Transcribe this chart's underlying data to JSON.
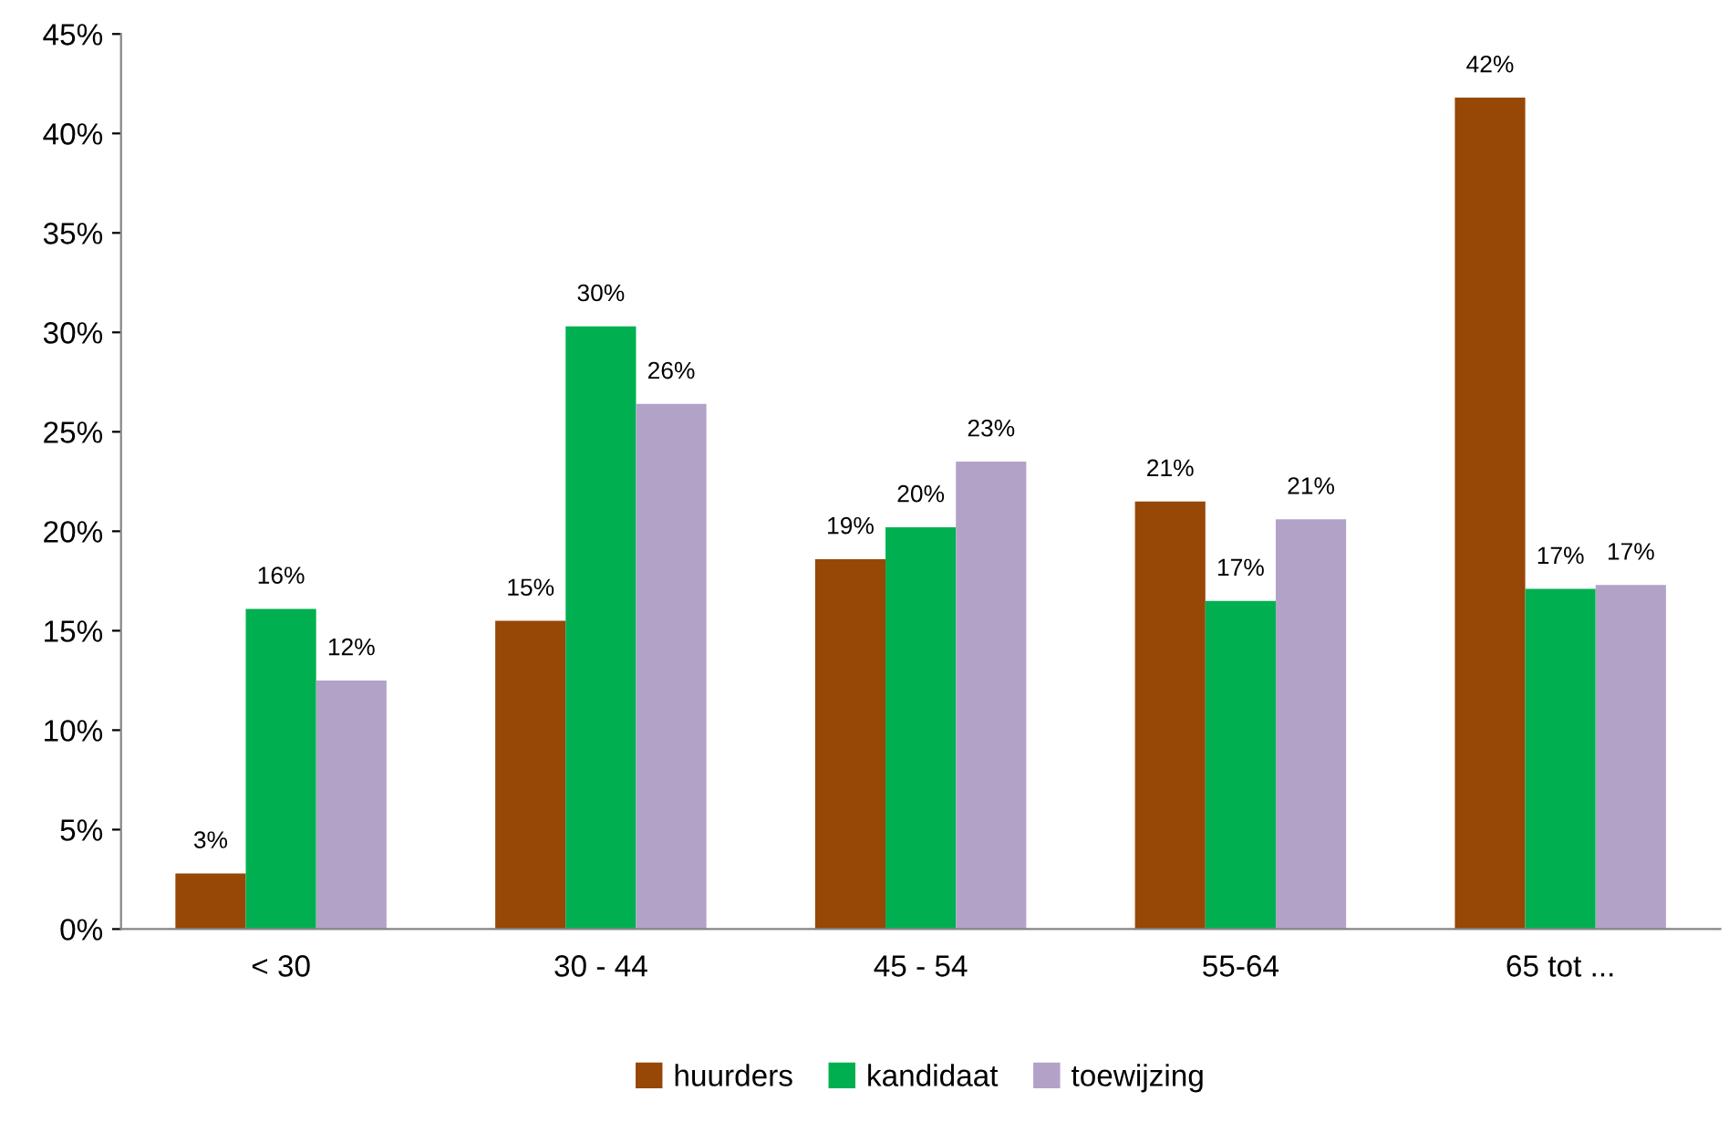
{
  "chart_data": {
    "type": "bar",
    "categories": [
      "< 30",
      "30 - 44",
      "45 - 54",
      "55-64",
      "65 tot ..."
    ],
    "series": [
      {
        "name": "huurders",
        "color": "#974706",
        "values": [
          2.8,
          15.5,
          18.6,
          21.5,
          41.8
        ],
        "value_labels": [
          "3%",
          "15%",
          "19%",
          "21%",
          "42%"
        ]
      },
      {
        "name": "kandidaat",
        "color": "#00b050",
        "values": [
          16.1,
          30.3,
          20.2,
          16.5,
          17.1
        ],
        "value_labels": [
          "16%",
          "30%",
          "20%",
          "17%",
          "17%"
        ]
      },
      {
        "name": "toewijzing",
        "color": "#b3a2c7",
        "values": [
          12.5,
          26.4,
          23.5,
          20.6,
          17.3
        ],
        "value_labels": [
          "12%",
          "26%",
          "23%",
          "21%",
          "17%"
        ]
      }
    ],
    "ylim": [
      0,
      45
    ],
    "yticks": [
      {
        "value": 0,
        "label": "0%"
      },
      {
        "value": 5,
        "label": "5%"
      },
      {
        "value": 10,
        "label": "10%"
      },
      {
        "value": 15,
        "label": "15%"
      },
      {
        "value": 20,
        "label": "20%"
      },
      {
        "value": 25,
        "label": "25%"
      },
      {
        "value": 30,
        "label": "30%"
      },
      {
        "value": 35,
        "label": "35%"
      },
      {
        "value": 40,
        "label": "40%"
      },
      {
        "value": 45,
        "label": "45%"
      }
    ],
    "grid": false,
    "legend": "bottom"
  }
}
